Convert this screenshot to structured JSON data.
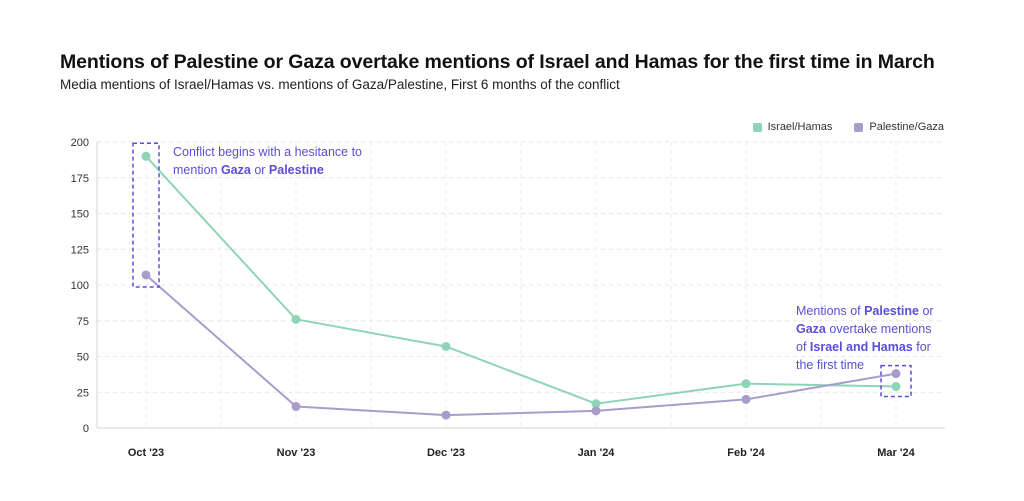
{
  "chart_data": {
    "type": "line",
    "title": "Mentions of Palestine or Gaza overtake mentions of Israel and Hamas for the first time in March",
    "subtitle": "Media mentions of Israel/Hamas vs. mentions of Gaza/Palestine, First 6 months of the conflict",
    "categories": [
      "Oct '23",
      "Nov '23",
      "Dec '23",
      "Jan '24",
      "Feb '24",
      "Mar '24"
    ],
    "yticks": [
      "0",
      "25",
      "50",
      "75",
      "100",
      "125",
      "150",
      "175",
      "200"
    ],
    "ylim": [
      0,
      200
    ],
    "grid": true,
    "legend_position": "top-right",
    "series": [
      {
        "name": "Israel/Hamas",
        "color": "#8fd4b6",
        "values": [
          190,
          76,
          57,
          17,
          31,
          29
        ]
      },
      {
        "name": "Palestine/Gaza",
        "color": "#a89ccb",
        "values": [
          107,
          15,
          9,
          12,
          20,
          38
        ]
      }
    ],
    "annotations": [
      {
        "lines": [
          [
            {
              "t": "Conflict begins with a hesitance to",
              "b": false
            }
          ],
          [
            {
              "t": "mention ",
              "b": false
            },
            {
              "t": "Gaza",
              "b": true
            },
            {
              "t": " or ",
              "b": false
            },
            {
              "t": "Palestine",
              "b": true
            }
          ]
        ]
      },
      {
        "lines": [
          [
            {
              "t": "Mentions of ",
              "b": false
            },
            {
              "t": "Palestine",
              "b": true
            },
            {
              "t": " or",
              "b": false
            }
          ],
          [
            {
              "t": "Gaza",
              "b": true
            },
            {
              "t": " overtake mentions",
              "b": false
            }
          ],
          [
            {
              "t": "of ",
              "b": false
            },
            {
              "t": "Israel and Hamas",
              "b": true
            },
            {
              "t": " for",
              "b": false
            }
          ],
          [
            {
              "t": "the first time",
              "b": false
            }
          ]
        ]
      }
    ],
    "annotation_color": "#5a4ed6"
  }
}
